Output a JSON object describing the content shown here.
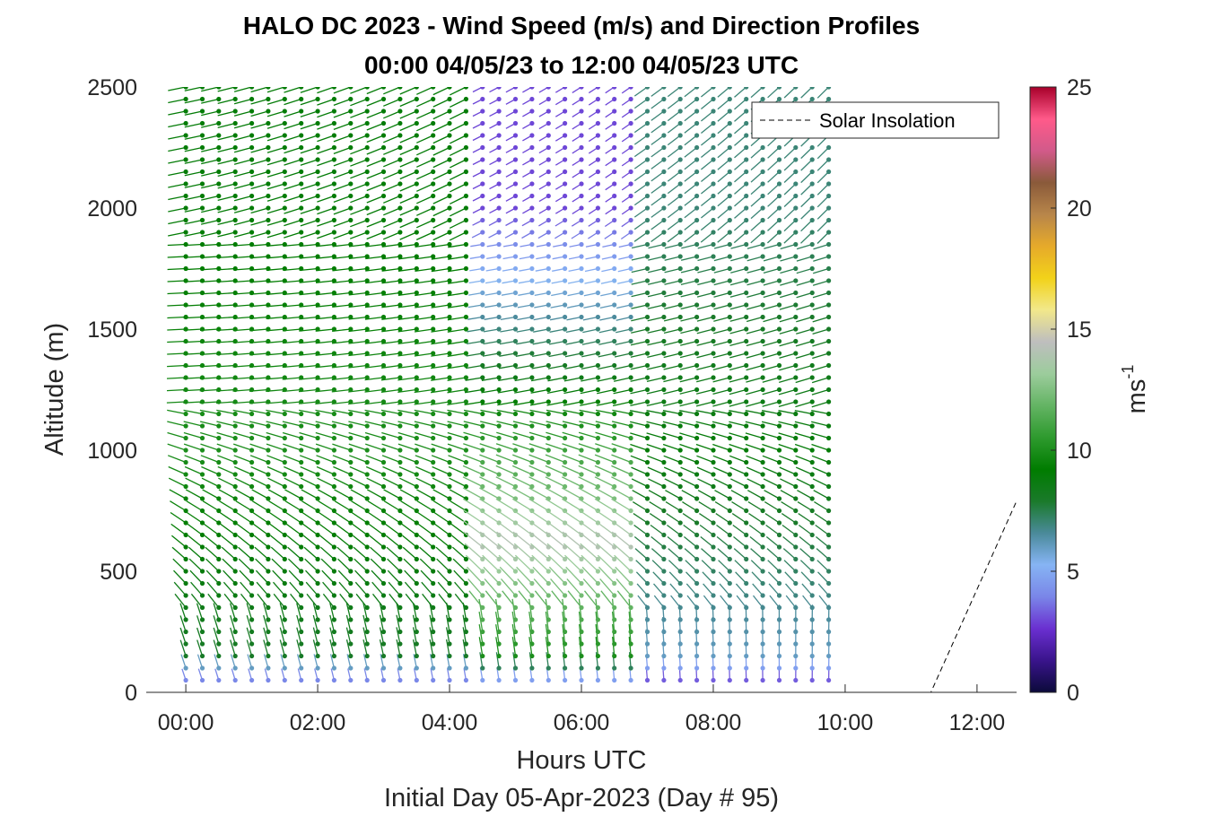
{
  "chart_data": {
    "type": "wind-barb-profile",
    "title": "HALO DC 2023 - Wind Speed (m/s) and Direction Profiles",
    "subtitle": "00:00 04/05/23 to 12:00 04/05/23  UTC",
    "xlabel": "Hours UTC",
    "xlabel2": "Initial Day 05-Apr-2023 (Day # 95)",
    "ylabel": "Altitude (m)",
    "colorbar_label": "ms",
    "colorbar_label_exp": "-1",
    "xlim": [
      -0.6,
      12.6
    ],
    "ylim": [
      0,
      2500
    ],
    "x_ticks": [
      0,
      2,
      4,
      6,
      8,
      10,
      12
    ],
    "x_tick_labels": [
      "00:00",
      "02:00",
      "04:00",
      "06:00",
      "08:00",
      "10:00",
      "12:00"
    ],
    "y_ticks": [
      0,
      500,
      1000,
      1500,
      2000,
      2500
    ],
    "y_tick_labels": [
      "0",
      "500",
      "1000",
      "1500",
      "2000",
      "2500"
    ],
    "colorbar_ticks": [
      0,
      5,
      10,
      15,
      20,
      25
    ],
    "colorbar_tick_labels": [
      "0",
      "5",
      "10",
      "15",
      "20",
      "25"
    ],
    "colorbar_range": [
      0,
      25
    ],
    "colormap": [
      "#0b0a3a",
      "#3a148c",
      "#6a2fd0",
      "#7a86e8",
      "#86b4f4",
      "#4a8a9a",
      "#1a7a2a",
      "#007c00",
      "#2e9a2e",
      "#64b464",
      "#9ccc9c",
      "#bebebe",
      "#f2e88a",
      "#f2d21a",
      "#e6aa2a",
      "#b8864a",
      "#8a5a3a",
      "#d25a8a",
      "#ff5a8a",
      "#a8002a"
    ],
    "profiles_time_range": [
      0.0,
      9.75
    ],
    "profile_interval_hours": 0.25,
    "altitude_range": [
      50,
      2500
    ],
    "legend": {
      "label": "Solar Insolation",
      "position": "top-right"
    },
    "solar_insolation": {
      "x": [
        -0.6,
        11.3,
        12.6
      ],
      "y": [
        0,
        0,
        790
      ]
    },
    "wind_speed_by_period": [
      {
        "hours": [
          0,
          4.5
        ],
        "boundary_layer": 8,
        "mid_1000m": 10,
        "upper_2000m": 9
      },
      {
        "hours": [
          4.5,
          7.0
        ],
        "boundary_layer": 10,
        "mid_600m": 14,
        "upper_2000m": 3
      },
      {
        "hours": [
          7.0,
          9.75
        ],
        "boundary_layer": 6,
        "mid_1000m": 9,
        "upper_2000m": 7
      }
    ]
  }
}
